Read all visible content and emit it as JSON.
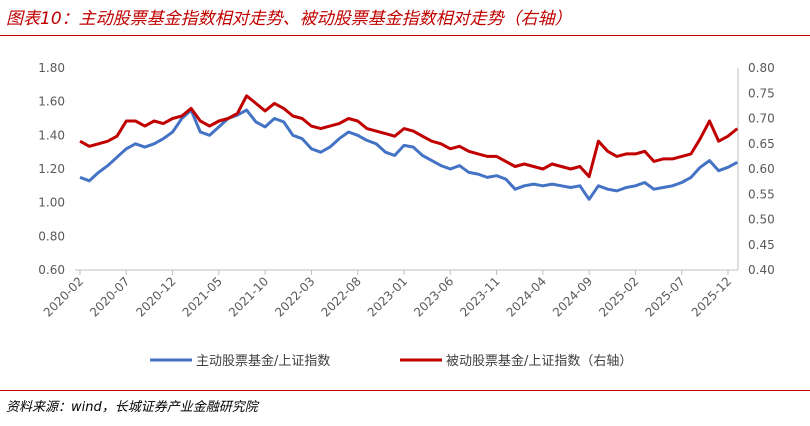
{
  "title": "图表10：主动股票基金指数相对走势、被动股票基金指数相对走势（右轴）",
  "source": "资料来源：wind，长城证券产业金融研究院",
  "colors": {
    "active": "#4472c4",
    "passive": "#c00000",
    "accent": "#c00000"
  },
  "chart_data": {
    "type": "line",
    "title": "图表10：主动股票基金指数相对走势、被动股票基金指数相对走势（右轴）",
    "x_ticks": [
      "2020-02",
      "2020-07",
      "2020-12",
      "2021-05",
      "2021-10",
      "2022-03",
      "2022-08",
      "2023-01",
      "2023-06",
      "2023-11",
      "2024-04",
      "2024-09",
      "2025-02",
      "2025-07",
      "2025-12"
    ],
    "y_left": {
      "min": 0.6,
      "max": 1.8,
      "ticks": [
        "0.60",
        "0.80",
        "1.00",
        "1.20",
        "1.40",
        "1.60",
        "1.80"
      ]
    },
    "y_right": {
      "min": 0.4,
      "max": 0.8,
      "ticks": [
        "0.40",
        "0.45",
        "0.50",
        "0.55",
        "0.60",
        "0.65",
        "0.70",
        "0.75",
        "0.80"
      ]
    },
    "legend_position": "bottom",
    "grid": false,
    "series": [
      {
        "name": "主动股票基金/上证指数",
        "axis": "left",
        "points": [
          [
            "2020-02",
            1.15
          ],
          [
            "2020-03",
            1.13
          ],
          [
            "2020-04",
            1.18
          ],
          [
            "2020-05",
            1.22
          ],
          [
            "2020-06",
            1.27
          ],
          [
            "2020-07",
            1.32
          ],
          [
            "2020-08",
            1.35
          ],
          [
            "2020-09",
            1.33
          ],
          [
            "2020-10",
            1.35
          ],
          [
            "2020-11",
            1.38
          ],
          [
            "2020-12",
            1.42
          ],
          [
            "2021-01",
            1.5
          ],
          [
            "2021-02",
            1.55
          ],
          [
            "2021-03",
            1.42
          ],
          [
            "2021-04",
            1.4
          ],
          [
            "2021-05",
            1.45
          ],
          [
            "2021-06",
            1.5
          ],
          [
            "2021-07",
            1.52
          ],
          [
            "2021-08",
            1.55
          ],
          [
            "2021-09",
            1.48
          ],
          [
            "2021-10",
            1.45
          ],
          [
            "2021-11",
            1.5
          ],
          [
            "2021-12",
            1.48
          ],
          [
            "2022-01",
            1.4
          ],
          [
            "2022-02",
            1.38
          ],
          [
            "2022-03",
            1.32
          ],
          [
            "2022-04",
            1.3
          ],
          [
            "2022-05",
            1.33
          ],
          [
            "2022-06",
            1.38
          ],
          [
            "2022-07",
            1.42
          ],
          [
            "2022-08",
            1.4
          ],
          [
            "2022-09",
            1.37
          ],
          [
            "2022-10",
            1.35
          ],
          [
            "2022-11",
            1.3
          ],
          [
            "2022-12",
            1.28
          ],
          [
            "2023-01",
            1.34
          ],
          [
            "2023-02",
            1.33
          ],
          [
            "2023-03",
            1.28
          ],
          [
            "2023-04",
            1.25
          ],
          [
            "2023-05",
            1.22
          ],
          [
            "2023-06",
            1.2
          ],
          [
            "2023-07",
            1.22
          ],
          [
            "2023-08",
            1.18
          ],
          [
            "2023-09",
            1.17
          ],
          [
            "2023-10",
            1.15
          ],
          [
            "2023-11",
            1.16
          ],
          [
            "2023-12",
            1.14
          ],
          [
            "2024-01",
            1.08
          ],
          [
            "2024-02",
            1.1
          ],
          [
            "2024-03",
            1.11
          ],
          [
            "2024-04",
            1.1
          ],
          [
            "2024-05",
            1.11
          ],
          [
            "2024-06",
            1.1
          ],
          [
            "2024-07",
            1.09
          ],
          [
            "2024-08",
            1.1
          ],
          [
            "2024-09",
            1.02
          ],
          [
            "2024-10",
            1.1
          ],
          [
            "2024-11",
            1.08
          ],
          [
            "2024-12",
            1.07
          ],
          [
            "2025-01",
            1.09
          ],
          [
            "2025-02",
            1.1
          ],
          [
            "2025-03",
            1.12
          ],
          [
            "2025-04",
            1.08
          ],
          [
            "2025-05",
            1.09
          ],
          [
            "2025-06",
            1.1
          ],
          [
            "2025-07",
            1.12
          ],
          [
            "2025-08",
            1.15
          ],
          [
            "2025-09",
            1.21
          ],
          [
            "2025-10",
            1.25
          ],
          [
            "2025-11",
            1.19
          ],
          [
            "2025-12",
            1.21
          ],
          [
            "2026-01",
            1.24
          ]
        ]
      },
      {
        "name": "被动股票基金/上证指数（右轴）",
        "axis": "right",
        "points": [
          [
            "2020-02",
            0.655
          ],
          [
            "2020-03",
            0.645
          ],
          [
            "2020-04",
            0.65
          ],
          [
            "2020-05",
            0.655
          ],
          [
            "2020-06",
            0.665
          ],
          [
            "2020-07",
            0.695
          ],
          [
            "2020-08",
            0.695
          ],
          [
            "2020-09",
            0.685
          ],
          [
            "2020-10",
            0.695
          ],
          [
            "2020-11",
            0.69
          ],
          [
            "2020-12",
            0.7
          ],
          [
            "2021-01",
            0.705
          ],
          [
            "2021-02",
            0.72
          ],
          [
            "2021-03",
            0.695
          ],
          [
            "2021-04",
            0.685
          ],
          [
            "2021-05",
            0.695
          ],
          [
            "2021-06",
            0.7
          ],
          [
            "2021-07",
            0.71
          ],
          [
            "2021-08",
            0.745
          ],
          [
            "2021-09",
            0.73
          ],
          [
            "2021-10",
            0.715
          ],
          [
            "2021-11",
            0.73
          ],
          [
            "2021-12",
            0.72
          ],
          [
            "2022-01",
            0.705
          ],
          [
            "2022-02",
            0.7
          ],
          [
            "2022-03",
            0.685
          ],
          [
            "2022-04",
            0.68
          ],
          [
            "2022-05",
            0.685
          ],
          [
            "2022-06",
            0.69
          ],
          [
            "2022-07",
            0.7
          ],
          [
            "2022-08",
            0.695
          ],
          [
            "2022-09",
            0.68
          ],
          [
            "2022-10",
            0.675
          ],
          [
            "2022-11",
            0.67
          ],
          [
            "2022-12",
            0.665
          ],
          [
            "2023-01",
            0.68
          ],
          [
            "2023-02",
            0.675
          ],
          [
            "2023-03",
            0.665
          ],
          [
            "2023-04",
            0.655
          ],
          [
            "2023-05",
            0.65
          ],
          [
            "2023-06",
            0.64
          ],
          [
            "2023-07",
            0.645
          ],
          [
            "2023-08",
            0.635
          ],
          [
            "2023-09",
            0.63
          ],
          [
            "2023-10",
            0.625
          ],
          [
            "2023-11",
            0.625
          ],
          [
            "2023-12",
            0.615
          ],
          [
            "2024-01",
            0.605
          ],
          [
            "2024-02",
            0.61
          ],
          [
            "2024-03",
            0.605
          ],
          [
            "2024-04",
            0.6
          ],
          [
            "2024-05",
            0.61
          ],
          [
            "2024-06",
            0.605
          ],
          [
            "2024-07",
            0.6
          ],
          [
            "2024-08",
            0.605
          ],
          [
            "2024-09",
            0.585
          ],
          [
            "2024-10",
            0.655
          ],
          [
            "2024-11",
            0.635
          ],
          [
            "2024-12",
            0.625
          ],
          [
            "2025-01",
            0.63
          ],
          [
            "2025-02",
            0.63
          ],
          [
            "2025-03",
            0.635
          ],
          [
            "2025-04",
            0.615
          ],
          [
            "2025-05",
            0.62
          ],
          [
            "2025-06",
            0.62
          ],
          [
            "2025-07",
            0.625
          ],
          [
            "2025-08",
            0.63
          ],
          [
            "2025-09",
            0.66
          ],
          [
            "2025-10",
            0.695
          ],
          [
            "2025-11",
            0.655
          ],
          [
            "2025-12",
            0.665
          ],
          [
            "2026-01",
            0.68
          ]
        ]
      }
    ]
  }
}
